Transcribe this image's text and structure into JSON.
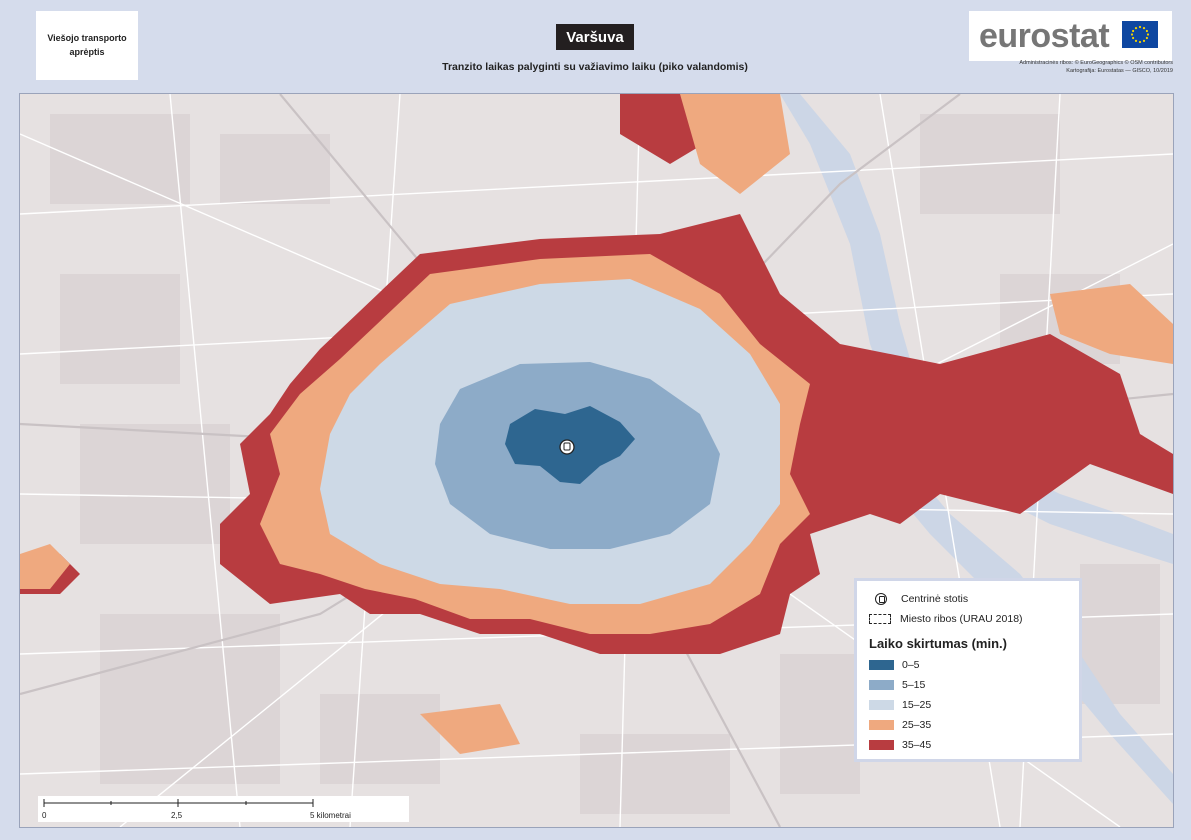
{
  "header": {
    "theme": "Viešojo transporto aprėptis",
    "city": "Varšuva",
    "subtitle": "Tranzito laikas palyginti su važiavimo laiku (piko valandomis)",
    "logo": "eurostat",
    "credits_line1": "Administracinės ribos: © EuroGeographics © OSM contributors",
    "credits_line2": "Kartografija: Eurostatas — GISCO, 10/2019"
  },
  "legend": {
    "station_label": "Centrinė stotis",
    "boundary_label": "Miesto ribos (URAU 2018)",
    "title": "Laiko skirtumas (min.)",
    "classes": [
      {
        "label": "0–5",
        "color": "#2e6690"
      },
      {
        "label": "5–15",
        "color": "#8dabc8"
      },
      {
        "label": "15–25",
        "color": "#cdd9e6"
      },
      {
        "label": "25–35",
        "color": "#efa97f"
      },
      {
        "label": "35–45",
        "color": "#b83c40"
      }
    ]
  },
  "scalebar": {
    "labels": [
      "0",
      "2,5",
      "5 kilometrai"
    ]
  },
  "colors": {
    "basemap": "#e6e1e1",
    "roads": "#ffffff",
    "major_roads": "#c9c2c4",
    "water": "#ccd6e6"
  }
}
